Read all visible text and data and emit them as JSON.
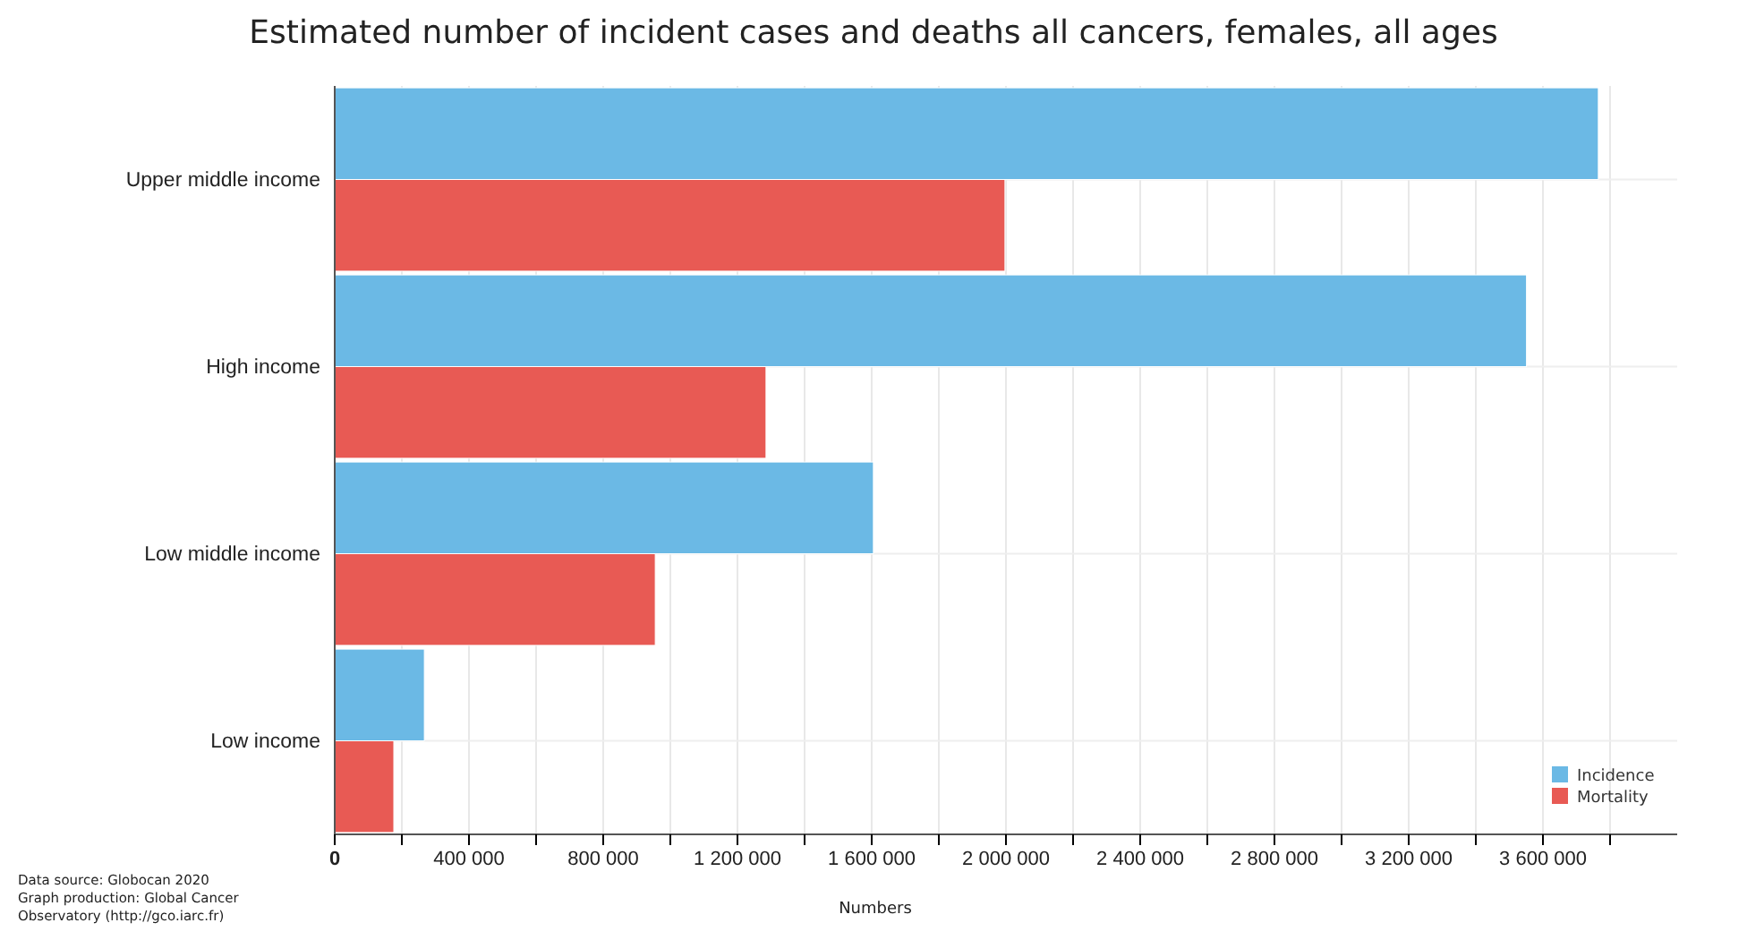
{
  "chart_data": {
    "type": "bar",
    "orientation": "horizontal",
    "title": "Estimated number of incident cases and deaths all cancers, females, all ages",
    "xlabel": "Numbers",
    "categories": [
      "Upper middle income",
      "High income",
      "Low middle income",
      "Low income"
    ],
    "series": [
      {
        "name": "Incidence",
        "color": "#6bb9e5",
        "values": [
          3765000,
          3551000,
          1605000,
          267000
        ]
      },
      {
        "name": "Mortality",
        "color": "#e85a54",
        "values": [
          1997000,
          1285000,
          955000,
          176000
        ]
      }
    ],
    "xlim": [
      0,
      4000000
    ],
    "xticks": [
      {
        "value": 0,
        "label": "0"
      },
      {
        "value": 200000,
        "label": null
      },
      {
        "value": 400000,
        "label": "400 000"
      },
      {
        "value": 600000,
        "label": null
      },
      {
        "value": 800000,
        "label": "800 000"
      },
      {
        "value": 1000000,
        "label": null
      },
      {
        "value": 1200000,
        "label": "1 200 000"
      },
      {
        "value": 1400000,
        "label": null
      },
      {
        "value": 1600000,
        "label": "1 600 000"
      },
      {
        "value": 1800000,
        "label": null
      },
      {
        "value": 2000000,
        "label": "2 000 000"
      },
      {
        "value": 2200000,
        "label": null
      },
      {
        "value": 2400000,
        "label": "2 400 000"
      },
      {
        "value": 2600000,
        "label": null
      },
      {
        "value": 2800000,
        "label": "2 800 000"
      },
      {
        "value": 3000000,
        "label": null
      },
      {
        "value": 3200000,
        "label": "3 200 000"
      },
      {
        "value": 3400000,
        "label": null
      },
      {
        "value": 3600000,
        "label": "3 600 000"
      },
      {
        "value": 3800000,
        "label": null
      }
    ],
    "grid": true,
    "legend": "bottom right",
    "annotations": [
      "Data source: Globocan 2020",
      "Graph production: Global Cancer Observatory (http://gco.iarc.fr)"
    ]
  }
}
